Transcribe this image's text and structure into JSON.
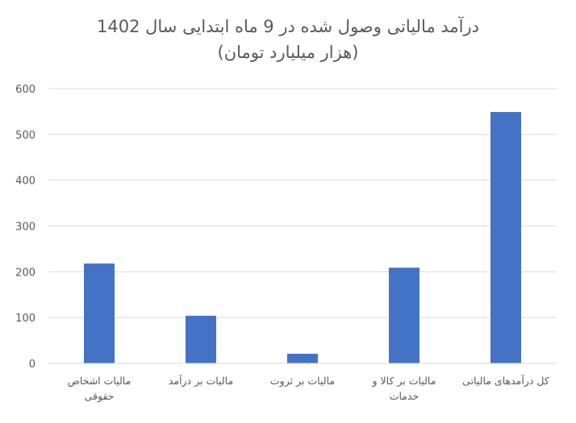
{
  "chart_data": {
    "type": "bar",
    "title": [
      "درآمد مالیاتی وصول شده در 9 ماه ابتدایی سال 1402",
      "(هزار میلیارد تومان)"
    ],
    "categories": [
      [
        "مالیات اشخاص",
        "حقوقی"
      ],
      [
        "مالیات بر درآمد"
      ],
      [
        "مالیات بر ثروت"
      ],
      [
        "مالیات بر کالا و",
        "خدمات"
      ],
      [
        "کل درآمدهای مالیاتی"
      ]
    ],
    "values": [
      218,
      104,
      21,
      209,
      549
    ],
    "ylim": [
      0,
      600
    ],
    "yticks": [
      0,
      100,
      200,
      300,
      400,
      500,
      600
    ],
    "grid": true,
    "legend": "none",
    "bar_color": "#4472C4",
    "grid_color": "#D9D9D9"
  }
}
